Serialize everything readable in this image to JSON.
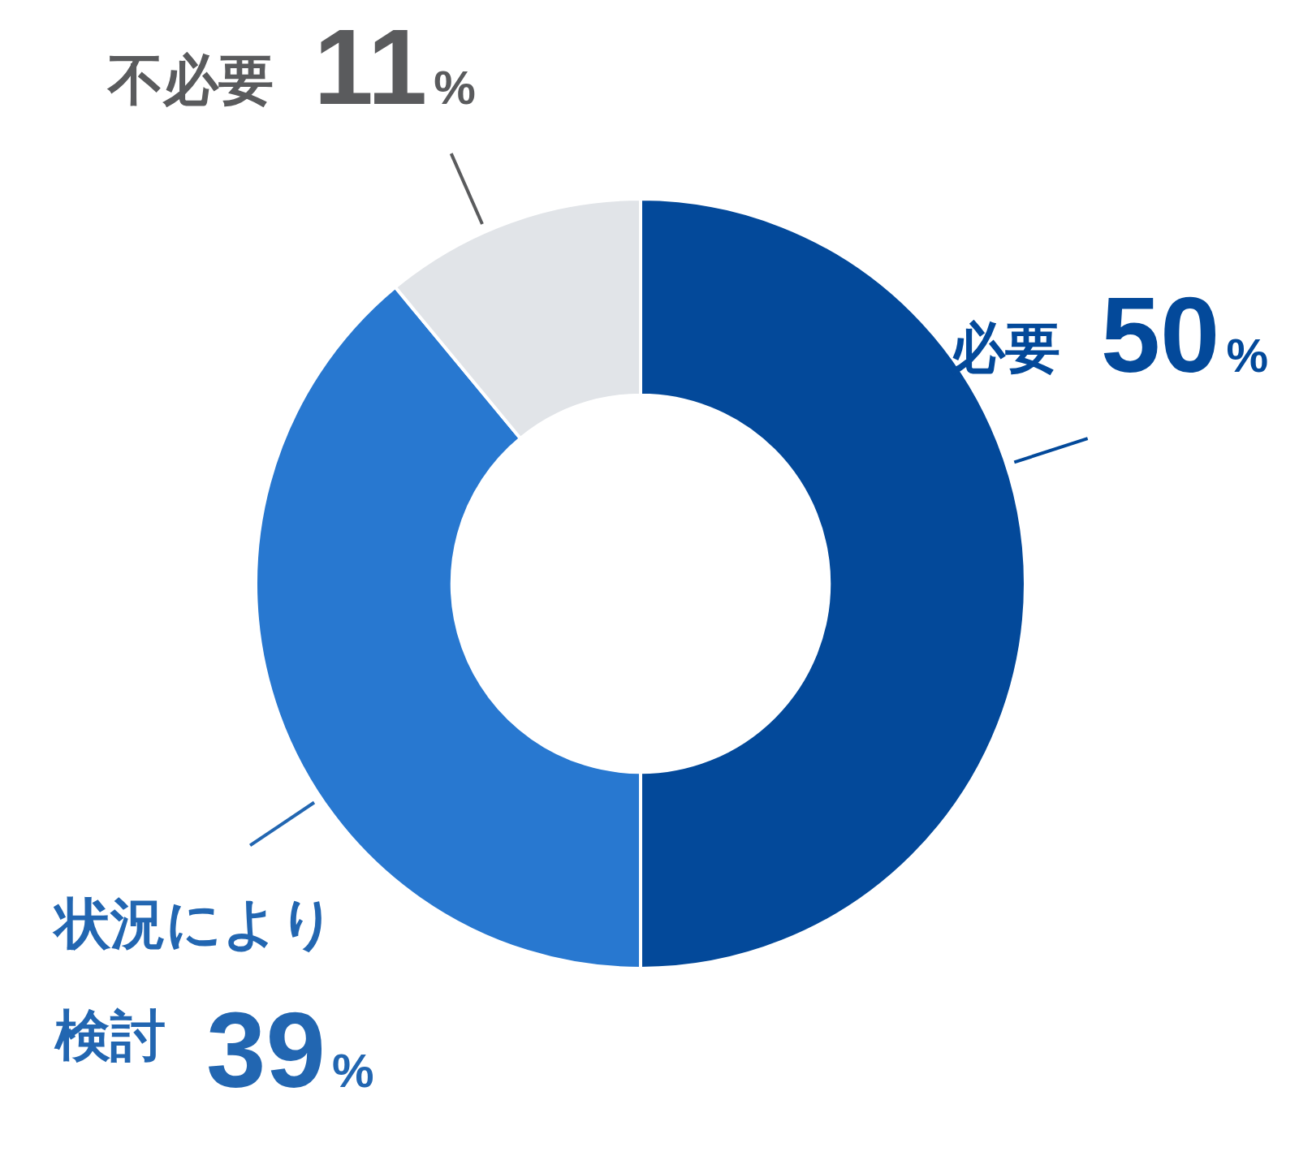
{
  "chart_data": {
    "type": "donut",
    "categories": [
      "必要",
      "状況により検討",
      "不必要"
    ],
    "values": [
      50,
      39,
      11
    ],
    "colors": [
      "#03499a",
      "#2878d0",
      "#e1e4e8"
    ],
    "value_labels": [
      "50%",
      "39%",
      "11%"
    ],
    "legend": false
  }
}
